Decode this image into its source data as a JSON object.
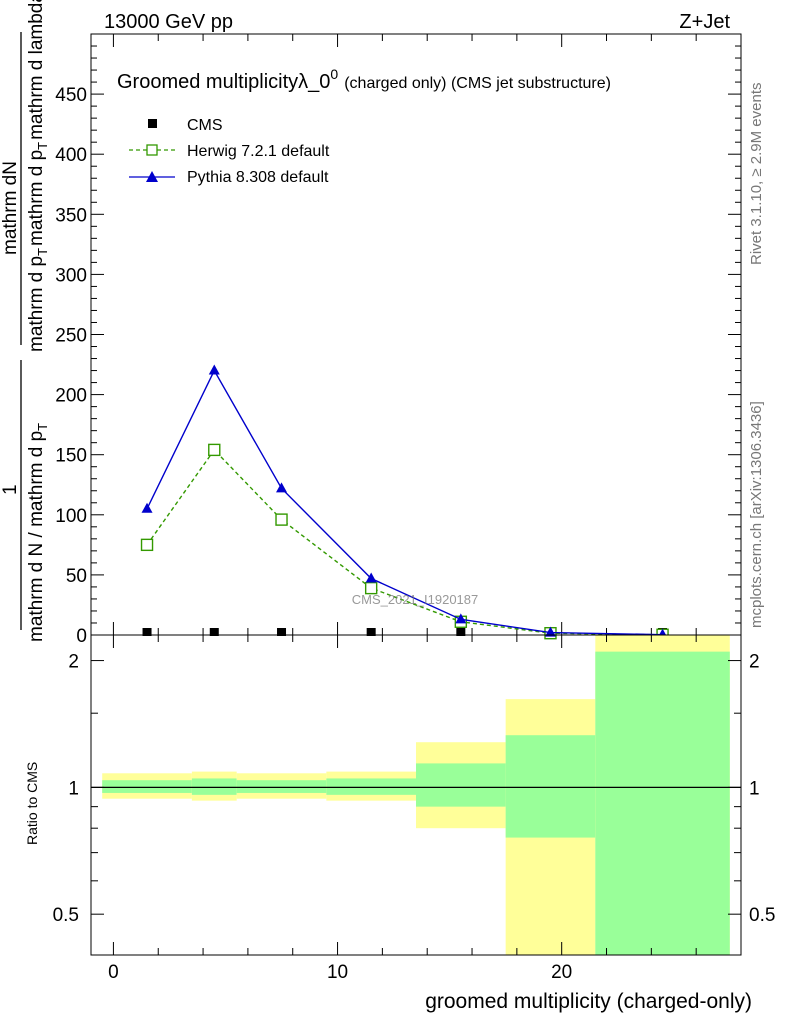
{
  "header": {
    "left": "13000 GeV pp",
    "right": "Z+Jet"
  },
  "side_labels": {
    "rivet": "Rivet 3.1.10, ≥ 2.9M events",
    "mcplots": "mcplots.cern.ch [arXiv:1306.3436]"
  },
  "watermark": "CMS_2021_I1920187",
  "chart_data": [
    {
      "type": "line",
      "title": "Groomed multiplicityλ_0⁰",
      "title_main": "Groomed multiplicityλ_0",
      "title_sup": "0",
      "subtitle": "(charged only) (CMS jet substructure)",
      "ylabel": "1 / mathrm d N / mathrm d p_T mathrm d p_T mathrm d lambda  mathrm dN",
      "ylabel_parts": {
        "numerator_1": "1",
        "denominator_1": "mathrm d N / mathrm d p",
        "denominator_1_sub": "T",
        "numerator_2": "mathrm dN",
        "denominator_2": "mathrm d p",
        "denominator_2_sub": "T",
        "denominator_2_tail": "mathrm d p",
        "denominator_2_tail_sub": "T",
        "denominator_2_end": "mathrm d lambda"
      },
      "xlim": [
        -1,
        28
      ],
      "ylim": [
        0,
        500
      ],
      "yticks": [
        0,
        50,
        100,
        150,
        200,
        250,
        300,
        350,
        400,
        450
      ],
      "legend_position": "top-left",
      "series": [
        {
          "name": "CMS",
          "color": "#000000",
          "marker": "square-filled",
          "x": [
            1.5,
            4.5,
            7.5,
            11.5,
            15.5,
            19.5,
            24.5
          ],
          "values": [
            0,
            0,
            0,
            0,
            0,
            0,
            0
          ]
        },
        {
          "name": "Herwig 7.2.1 default",
          "color": "#339900",
          "marker": "square-open",
          "dashed": true,
          "x": [
            1.5,
            4.5,
            7.5,
            11.5,
            15.5,
            19.5,
            24.5
          ],
          "values": [
            75,
            154,
            96,
            39,
            11,
            1.5,
            0.2
          ]
        },
        {
          "name": "Pythia 8.308 default",
          "color": "#0000cc",
          "marker": "triangle-filled",
          "dashed": false,
          "x": [
            1.5,
            4.5,
            7.5,
            11.5,
            15.5,
            19.5,
            24.5
          ],
          "values": [
            105,
            220,
            122,
            47,
            13,
            2,
            0.3
          ]
        }
      ]
    },
    {
      "type": "area",
      "ylabel": "Ratio to CMS",
      "xlabel": "groomed multiplicity (charged-only)",
      "xlim": [
        -1,
        28
      ],
      "ylim": [
        0.4,
        2.3
      ],
      "log_y": true,
      "xticks": [
        0,
        10,
        20
      ],
      "yticks": [
        0.5,
        1,
        2
      ],
      "reference_line": 1,
      "band_colors": {
        "inner": "#99ff99",
        "outer": "#ffff99"
      },
      "bins": [
        {
          "low": -0.5,
          "high": 3.5,
          "outer": [
            0.94,
            1.08
          ],
          "inner": [
            0.97,
            1.04
          ]
        },
        {
          "low": 3.5,
          "high": 5.5,
          "outer": [
            0.93,
            1.09
          ],
          "inner": [
            0.96,
            1.05
          ]
        },
        {
          "low": 5.5,
          "high": 9.5,
          "outer": [
            0.94,
            1.08
          ],
          "inner": [
            0.97,
            1.04
          ]
        },
        {
          "low": 9.5,
          "high": 13.5,
          "outer": [
            0.93,
            1.09
          ],
          "inner": [
            0.96,
            1.05
          ]
        },
        {
          "low": 13.5,
          "high": 17.5,
          "outer": [
            0.8,
            1.28
          ],
          "inner": [
            0.9,
            1.14
          ]
        },
        {
          "low": 17.5,
          "high": 21.5,
          "outer": [
            0.38,
            1.62
          ],
          "inner": [
            0.76,
            1.33
          ]
        },
        {
          "low": 21.5,
          "high": 27.5,
          "outer": [
            0.38,
            2.3
          ],
          "inner": [
            0.38,
            2.1
          ]
        }
      ]
    }
  ]
}
